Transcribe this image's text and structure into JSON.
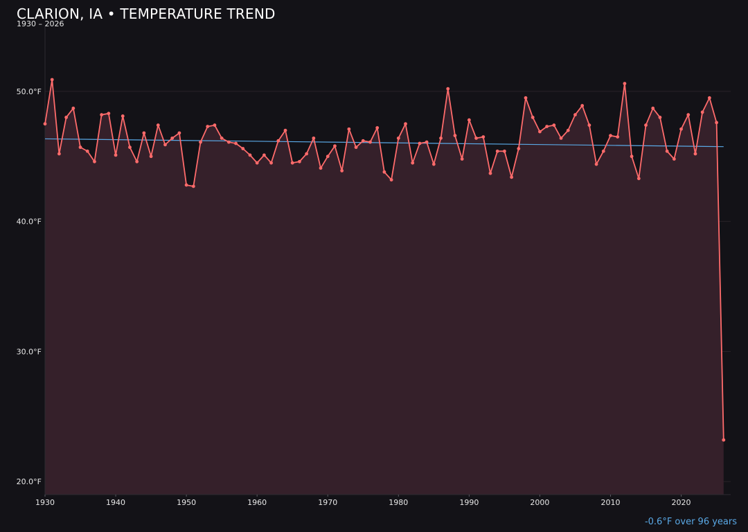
{
  "header": {
    "title": "CLARION, IA • TEMPERATURE TREND",
    "subtitle": "1930 – 2026"
  },
  "trend_note": "-0.6°F over 96 years",
  "colors": {
    "background": "#131217",
    "line": "#ff6b6b",
    "fill": "#35202a",
    "trend": "#5aa9e6",
    "grid": "#2a2229"
  },
  "chart_data": {
    "type": "line",
    "ylim": [
      19,
      55
    ],
    "xlim": [
      1930,
      2027
    ],
    "y_ticks": [
      20,
      30,
      40,
      50
    ],
    "y_tick_labels": [
      "20.0°F",
      "30.0°F",
      "40.0°F",
      "50.0°F"
    ],
    "x_ticks": [
      1930,
      1940,
      1950,
      1960,
      1970,
      1980,
      1990,
      2000,
      2010,
      2020
    ],
    "x_tick_labels": [
      "1930",
      "1940",
      "1950",
      "1960",
      "1970",
      "1980",
      "1990",
      "2000",
      "2010",
      "2020"
    ],
    "grid": true,
    "series": [
      {
        "x": [
          1930,
          1931,
          1932,
          1933,
          1934,
          1935,
          1936,
          1937,
          1938,
          1939,
          1940,
          1941,
          1942,
          1943,
          1944,
          1945,
          1946,
          1947,
          1948,
          1949,
          1950,
          1951,
          1952,
          1953,
          1954,
          1955,
          1956,
          1957,
          1958,
          1959,
          1960,
          1961,
          1962,
          1963,
          1964,
          1965,
          1966,
          1967,
          1968,
          1969,
          1970,
          1971,
          1972,
          1973,
          1974,
          1975,
          1976,
          1977,
          1978,
          1979,
          1980,
          1981,
          1982,
          1983,
          1984,
          1985,
          1986,
          1987,
          1988,
          1989,
          1990,
          1991,
          1992,
          1993,
          1994,
          1995,
          1996,
          1997,
          1998,
          1999,
          2000,
          2001,
          2002,
          2003,
          2004,
          2005,
          2006,
          2007,
          2008,
          2009,
          2010,
          2011,
          2012,
          2013,
          2014,
          2015,
          2016,
          2017,
          2018,
          2019,
          2020,
          2021,
          2022,
          2023,
          2024,
          2025,
          2026
        ],
        "values": [
          47.5,
          50.9,
          45.2,
          48.0,
          48.7,
          45.7,
          45.4,
          44.6,
          48.2,
          48.3,
          45.1,
          48.1,
          45.7,
          44.6,
          46.8,
          45.0,
          47.4,
          45.9,
          46.4,
          46.8,
          42.8,
          42.7,
          46.1,
          47.3,
          47.4,
          46.4,
          46.1,
          46.0,
          45.6,
          45.1,
          44.5,
          45.1,
          44.5,
          46.2,
          47.0,
          44.5,
          44.6,
          45.2,
          46.4,
          44.1,
          45.0,
          45.8,
          43.9,
          47.1,
          45.7,
          46.2,
          46.1,
          47.2,
          43.8,
          43.2,
          46.4,
          47.5,
          44.5,
          46.0,
          46.1,
          44.4,
          46.4,
          50.2,
          46.6,
          44.8,
          47.8,
          46.4,
          46.5,
          43.7,
          45.4,
          45.4,
          43.4,
          45.6,
          49.5,
          48.0,
          46.9,
          47.3,
          47.4,
          46.4,
          47.0,
          48.2,
          48.9,
          47.4,
          44.4,
          45.4,
          46.6,
          46.5,
          50.6,
          45.0,
          43.3,
          47.4,
          48.7,
          48.0,
          45.4,
          44.8,
          47.1,
          48.2,
          45.2,
          48.4,
          49.5,
          47.6,
          23.2
        ]
      }
    ],
    "trendline": {
      "x": [
        1930,
        2026
      ],
      "y": [
        46.35,
        45.75
      ]
    }
  }
}
